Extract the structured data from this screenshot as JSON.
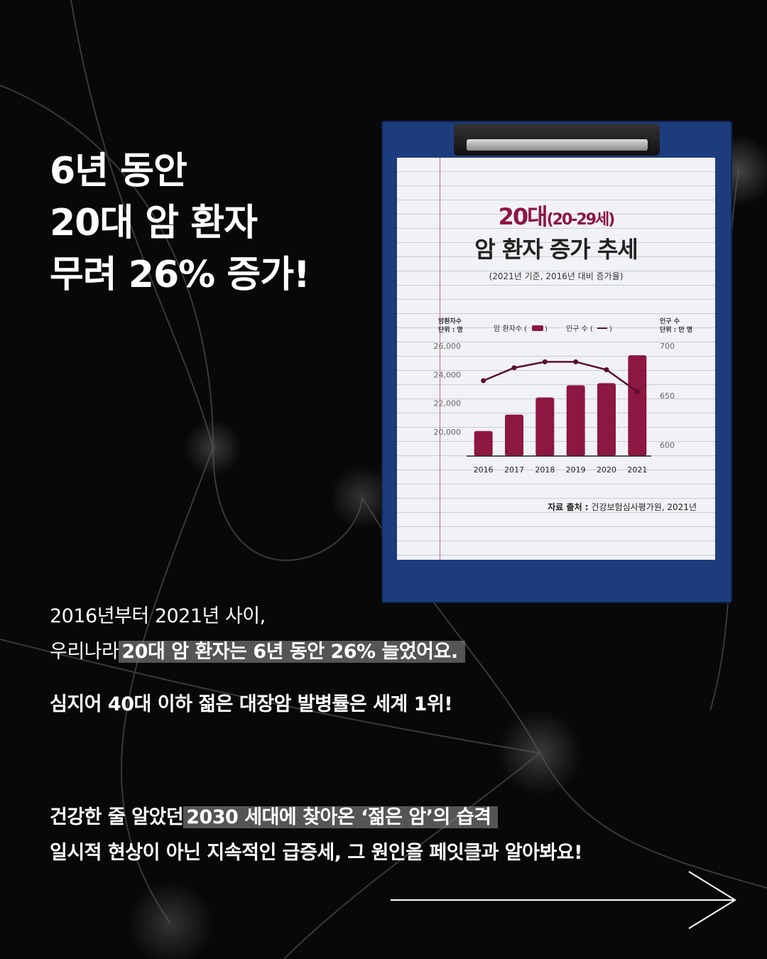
{
  "headline": [
    "6년 동안",
    "20대 암 환자",
    "무려 26% 증가!"
  ],
  "card": {
    "title_accent": "20대",
    "title_accent_sub": "(20-29세)",
    "title": "암 환자 증가 추세",
    "subtitle": "(2021년 기준, 2016년 대비 증가율)",
    "source_label": "자료 출처 :",
    "source": "건강보험심사평가원, 2021년"
  },
  "body": {
    "line1": "2016년부터 2021년 사이,",
    "line2_plain": "우리나라",
    "line2_highlight": "20대 암 환자는 6년 동안 26% 늘었어요.",
    "line3": "심지어 40대 이하 젊은 대장암 발병률은 세계 1위!",
    "line4_plain": "건강한 줄 알았던",
    "line4_highlight": "2030 세대에 찾아온 ‘젊은 암’의 습격",
    "line5": "일시적 현상이 아닌 지속적인 급증세, 그 원인을 페잇클과 알아봐요!"
  },
  "icons": {
    "next": "arrow-right-icon"
  },
  "colors": {
    "bar": "#8c1740",
    "line": "#5a0f2a",
    "clipboard": "#1d3c7c",
    "highlight": "#969696"
  },
  "chart_data": {
    "type": "bar+line",
    "categories": [
      "2016",
      "2017",
      "2018",
      "2019",
      "2020",
      "2021"
    ],
    "y_left_label": [
      "암환자수",
      "단위 : 명"
    ],
    "y_right_label": [
      "인구 수",
      "단위 : 만 명"
    ],
    "y_left_ticks": [
      "26,000",
      "24,000",
      "22,000",
      "20,000"
    ],
    "y_right_ticks": [
      "700",
      "650",
      "600"
    ],
    "y_left_range": [
      18300,
      26000
    ],
    "y_right_range": [
      589,
      700
    ],
    "legend": {
      "bar": "암 환자수 (",
      "line": "인구 수 (",
      "close": ")"
    },
    "series": [
      {
        "name": "암 환자수",
        "kind": "bar",
        "values": [
          20050,
          21200,
          22400,
          23250,
          23400,
          25350
        ]
      },
      {
        "name": "인구 수",
        "kind": "line",
        "axis": "right",
        "values": [
          665,
          678,
          684,
          684,
          676,
          654
        ]
      }
    ],
    "legend_placement": "top"
  }
}
